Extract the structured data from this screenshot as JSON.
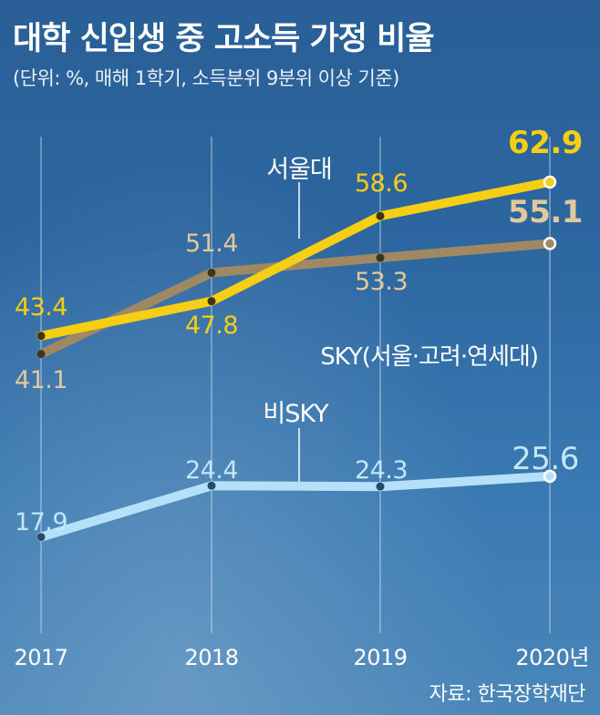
{
  "title": "대학 신입생 중 고소득 가정 비율",
  "subtitle": "(단위: %, 매해 1학기, 소득분위 9분위 이상 기준)",
  "source": "자료: 한국장학재단",
  "chart_data": {
    "type": "line",
    "categories": [
      "2017",
      "2018",
      "2019",
      "2020년"
    ],
    "series": [
      {
        "name": "서울대",
        "values": [
          43.4,
          47.8,
          58.6,
          62.9
        ],
        "color": "#f6cf14"
      },
      {
        "name": "SKY(서울·고려·연세대)",
        "values": [
          41.1,
          51.4,
          53.3,
          55.1
        ],
        "color": "#a08863"
      },
      {
        "name": "비SKY",
        "values": [
          17.9,
          24.4,
          24.3,
          25.6
        ],
        "color": "#b4e0f8"
      }
    ],
    "value_label_colors": [
      "#f6cf14",
      "#e2c99c",
      "#c3e6fa"
    ],
    "ylim": [
      0,
      70
    ],
    "xlabel": "",
    "ylabel": "",
    "grid": false
  }
}
